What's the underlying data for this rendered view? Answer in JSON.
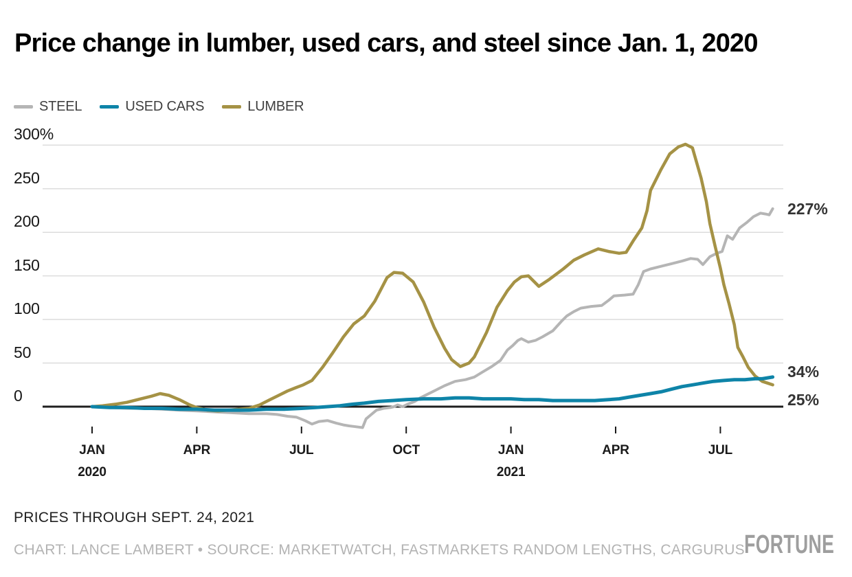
{
  "title": "Price change in lumber, used cars, and steel since Jan. 1, 2020",
  "legend": {
    "items": [
      {
        "label": "STEEL",
        "color": "#b5b5b5"
      },
      {
        "label": "USED CARS",
        "color": "#0e84a8"
      },
      {
        "label": "LUMBER",
        "color": "#a59245"
      }
    ]
  },
  "footer": {
    "note": "PRICES THROUGH SEPT. 24, 2021",
    "credit": "CHART: LANCE LAMBERT • SOURCE: MARKETWATCH, FASTMARKETS RANDOM LENGTHS, CARGURUS",
    "logo": "FORTUNE"
  },
  "chart_data": {
    "type": "line",
    "title": "Price change in lumber, used cars, and steel since Jan. 1, 2020",
    "x_unit": "months since Jan 1, 2020",
    "x_domain": [
      0,
      19.8
    ],
    "ylim": [
      -30,
      300
    ],
    "grid": true,
    "grid_color": "#dcdcdc",
    "zero_line_color": "#1f1f1f",
    "legend_position": "top-left",
    "y_ticks": [
      {
        "label": "300%",
        "value": 300
      },
      {
        "label": "250",
        "value": 250
      },
      {
        "label": "200",
        "value": 200
      },
      {
        "label": "150",
        "value": 150
      },
      {
        "label": "100",
        "value": 100
      },
      {
        "label": "50",
        "value": 50
      },
      {
        "label": "0",
        "value": 0
      }
    ],
    "x_ticks": [
      {
        "t": 0,
        "label": "JAN",
        "sub": "2020"
      },
      {
        "t": 3,
        "label": "APR",
        "sub": ""
      },
      {
        "t": 6,
        "label": "JUL",
        "sub": ""
      },
      {
        "t": 9,
        "label": "OCT",
        "sub": ""
      },
      {
        "t": 12,
        "label": "JAN",
        "sub": "2021"
      },
      {
        "t": 15,
        "label": "APR",
        "sub": ""
      },
      {
        "t": 18,
        "label": "JUL",
        "sub": ""
      }
    ],
    "series": [
      {
        "name": "STEEL",
        "color": "#b5b5b5",
        "width": 4,
        "end_label": "227%",
        "end_value": 227,
        "label_dy": 0,
        "points": [
          [
            0,
            0
          ],
          [
            0.5,
            -1
          ],
          [
            1,
            -2
          ],
          [
            1.5,
            -2
          ],
          [
            2,
            -3
          ],
          [
            2.5,
            -4
          ],
          [
            3,
            -5
          ],
          [
            3.5,
            -6
          ],
          [
            4,
            -7
          ],
          [
            4.5,
            -8
          ],
          [
            5,
            -8
          ],
          [
            5.3,
            -9
          ],
          [
            5.6,
            -11
          ],
          [
            5.85,
            -12
          ],
          [
            6.1,
            -16
          ],
          [
            6.3,
            -20
          ],
          [
            6.5,
            -17
          ],
          [
            6.75,
            -16
          ],
          [
            7,
            -19
          ],
          [
            7.2,
            -21
          ],
          [
            7.35,
            -22
          ],
          [
            7.55,
            -23
          ],
          [
            7.75,
            -24
          ],
          [
            7.85,
            -14
          ],
          [
            8,
            -9
          ],
          [
            8.15,
            -4
          ],
          [
            8.35,
            -2
          ],
          [
            8.55,
            -1
          ],
          [
            8.65,
            0
          ],
          [
            8.75,
            2
          ],
          [
            8.9,
            0
          ],
          [
            9.05,
            3
          ],
          [
            9.25,
            6
          ],
          [
            9.4,
            10
          ],
          [
            9.6,
            14
          ],
          [
            9.75,
            17
          ],
          [
            9.9,
            20
          ],
          [
            10.1,
            24
          ],
          [
            10.4,
            29
          ],
          [
            10.7,
            31
          ],
          [
            10.95,
            34
          ],
          [
            11.2,
            40
          ],
          [
            11.45,
            46
          ],
          [
            11.7,
            53
          ],
          [
            11.9,
            65
          ],
          [
            12.05,
            70
          ],
          [
            12.2,
            76
          ],
          [
            12.3,
            78
          ],
          [
            12.5,
            74
          ],
          [
            12.7,
            76
          ],
          [
            12.9,
            80
          ],
          [
            13.2,
            87
          ],
          [
            13.45,
            98
          ],
          [
            13.6,
            104
          ],
          [
            13.8,
            109
          ],
          [
            14,
            113
          ],
          [
            14.3,
            115
          ],
          [
            14.6,
            116
          ],
          [
            14.8,
            122
          ],
          [
            14.95,
            127
          ],
          [
            15.25,
            128
          ],
          [
            15.5,
            129
          ],
          [
            15.65,
            140
          ],
          [
            15.8,
            155
          ],
          [
            16,
            158
          ],
          [
            16.3,
            161
          ],
          [
            16.6,
            164
          ],
          [
            16.9,
            167
          ],
          [
            17.15,
            170
          ],
          [
            17.35,
            169
          ],
          [
            17.5,
            163
          ],
          [
            17.7,
            172
          ],
          [
            17.9,
            176
          ],
          [
            18.05,
            178
          ],
          [
            18.2,
            196
          ],
          [
            18.35,
            192
          ],
          [
            18.55,
            205
          ],
          [
            18.75,
            211
          ],
          [
            18.95,
            218
          ],
          [
            19.15,
            222
          ],
          [
            19.3,
            221
          ],
          [
            19.4,
            220
          ],
          [
            19.5,
            227
          ]
        ]
      },
      {
        "name": "LUMBER",
        "color": "#a59245",
        "width": 4.5,
        "end_label": "25%",
        "end_value": 25,
        "label_dy": 22,
        "points": [
          [
            0,
            0
          ],
          [
            0.3,
            1
          ],
          [
            0.7,
            3
          ],
          [
            1,
            5
          ],
          [
            1.4,
            9
          ],
          [
            1.7,
            12
          ],
          [
            1.95,
            15
          ],
          [
            2.2,
            13
          ],
          [
            2.5,
            8
          ],
          [
            2.8,
            2
          ],
          [
            3,
            -1
          ],
          [
            3.3,
            -4
          ],
          [
            3.6,
            -5
          ],
          [
            3.9,
            -4
          ],
          [
            4.2,
            -3
          ],
          [
            4.5,
            -2
          ],
          [
            4.8,
            2
          ],
          [
            5.1,
            8
          ],
          [
            5.35,
            13
          ],
          [
            5.6,
            18
          ],
          [
            5.85,
            22
          ],
          [
            6.05,
            25
          ],
          [
            6.3,
            30
          ],
          [
            6.6,
            45
          ],
          [
            6.9,
            62
          ],
          [
            7.2,
            80
          ],
          [
            7.5,
            95
          ],
          [
            7.8,
            104
          ],
          [
            8.1,
            121
          ],
          [
            8.45,
            148
          ],
          [
            8.65,
            154
          ],
          [
            8.9,
            153
          ],
          [
            9.2,
            143
          ],
          [
            9.5,
            120
          ],
          [
            9.8,
            91
          ],
          [
            10.1,
            67
          ],
          [
            10.3,
            54
          ],
          [
            10.55,
            46
          ],
          [
            10.8,
            50
          ],
          [
            10.95,
            57
          ],
          [
            11.3,
            85
          ],
          [
            11.6,
            114
          ],
          [
            11.9,
            133
          ],
          [
            12.1,
            143
          ],
          [
            12.3,
            149
          ],
          [
            12.5,
            150
          ],
          [
            12.8,
            138
          ],
          [
            13.1,
            146
          ],
          [
            13.5,
            158
          ],
          [
            13.8,
            168
          ],
          [
            14.1,
            174
          ],
          [
            14.5,
            181
          ],
          [
            14.8,
            178
          ],
          [
            15.1,
            176
          ],
          [
            15.3,
            177
          ],
          [
            15.5,
            190
          ],
          [
            15.75,
            205
          ],
          [
            15.9,
            225
          ],
          [
            16,
            248
          ],
          [
            16.3,
            272
          ],
          [
            16.55,
            290
          ],
          [
            16.8,
            298
          ],
          [
            17,
            301
          ],
          [
            17.2,
            297
          ],
          [
            17.45,
            262
          ],
          [
            17.6,
            235
          ],
          [
            17.7,
            210
          ],
          [
            17.85,
            184
          ],
          [
            18,
            159
          ],
          [
            18.1,
            140
          ],
          [
            18.25,
            118
          ],
          [
            18.4,
            94
          ],
          [
            18.5,
            68
          ],
          [
            18.65,
            57
          ],
          [
            18.8,
            45
          ],
          [
            19,
            35
          ],
          [
            19.2,
            29
          ],
          [
            19.35,
            27
          ],
          [
            19.5,
            25
          ]
        ]
      },
      {
        "name": "USED CARS",
        "color": "#0e84a8",
        "width": 5,
        "end_label": "34%",
        "end_value": 34,
        "label_dy": -8,
        "points": [
          [
            0,
            0
          ],
          [
            0.5,
            -1
          ],
          [
            1,
            -1
          ],
          [
            1.5,
            -2
          ],
          [
            2,
            -2
          ],
          [
            2.5,
            -3
          ],
          [
            3,
            -3
          ],
          [
            3.5,
            -4
          ],
          [
            4,
            -4
          ],
          [
            4.5,
            -4
          ],
          [
            5,
            -3
          ],
          [
            5.5,
            -3
          ],
          [
            6,
            -2
          ],
          [
            6.4,
            -1
          ],
          [
            6.75,
            0
          ],
          [
            7.1,
            1
          ],
          [
            7.5,
            3
          ],
          [
            7.8,
            4
          ],
          [
            8.2,
            6
          ],
          [
            8.6,
            7
          ],
          [
            9,
            8
          ],
          [
            9.5,
            9
          ],
          [
            10,
            9
          ],
          [
            10.4,
            10
          ],
          [
            10.8,
            10
          ],
          [
            11.2,
            9
          ],
          [
            11.6,
            9
          ],
          [
            12,
            9
          ],
          [
            12.4,
            8
          ],
          [
            12.8,
            8
          ],
          [
            13.2,
            7
          ],
          [
            13.6,
            7
          ],
          [
            14,
            7
          ],
          [
            14.4,
            7
          ],
          [
            14.8,
            8
          ],
          [
            15.1,
            9
          ],
          [
            15.4,
            11
          ],
          [
            15.7,
            13
          ],
          [
            16,
            15
          ],
          [
            16.3,
            17
          ],
          [
            16.6,
            20
          ],
          [
            16.9,
            23
          ],
          [
            17.2,
            25
          ],
          [
            17.5,
            27
          ],
          [
            17.8,
            29
          ],
          [
            18.1,
            30
          ],
          [
            18.4,
            31
          ],
          [
            18.7,
            31
          ],
          [
            19,
            32
          ],
          [
            19.2,
            32
          ],
          [
            19.35,
            33
          ],
          [
            19.5,
            34
          ]
        ]
      }
    ]
  }
}
